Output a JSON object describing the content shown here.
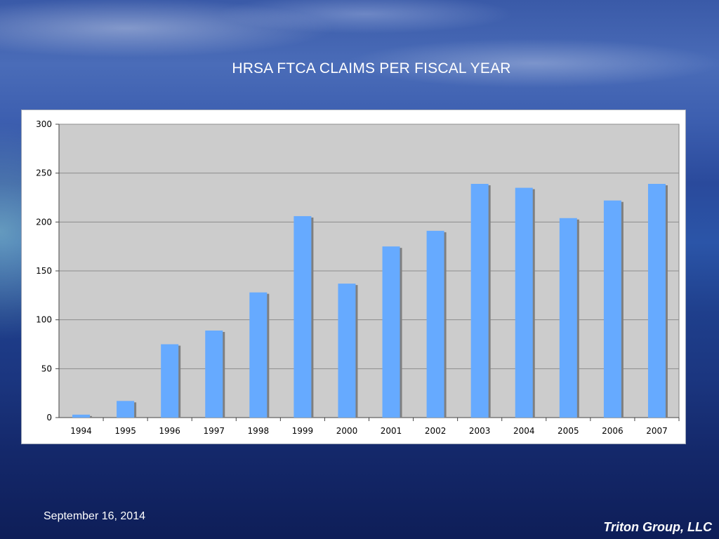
{
  "slide": {
    "title": "HRSA FTCA CLAIMS PER FISCAL YEAR",
    "date": "September 16, 2014",
    "company": "Triton Group, LLC"
  },
  "colors": {
    "bar": "#66aaff",
    "bar_shadow": "#7f7f7f",
    "plot_bg": "#cccccc",
    "gridline": "#8c8c8c"
  },
  "chart_data": {
    "type": "bar",
    "categories": [
      "1994",
      "1995",
      "1996",
      "1997",
      "1998",
      "1999",
      "2000",
      "2001",
      "2002",
      "2003",
      "2004",
      "2005",
      "2006",
      "2007"
    ],
    "values": [
      3,
      17,
      75,
      89,
      128,
      206,
      137,
      175,
      191,
      239,
      235,
      204,
      222,
      239
    ],
    "yticks": [
      "0",
      "50",
      "100",
      "150",
      "200",
      "250",
      "300"
    ],
    "ylim": [
      0,
      300
    ],
    "grid": true,
    "legend": "none"
  }
}
